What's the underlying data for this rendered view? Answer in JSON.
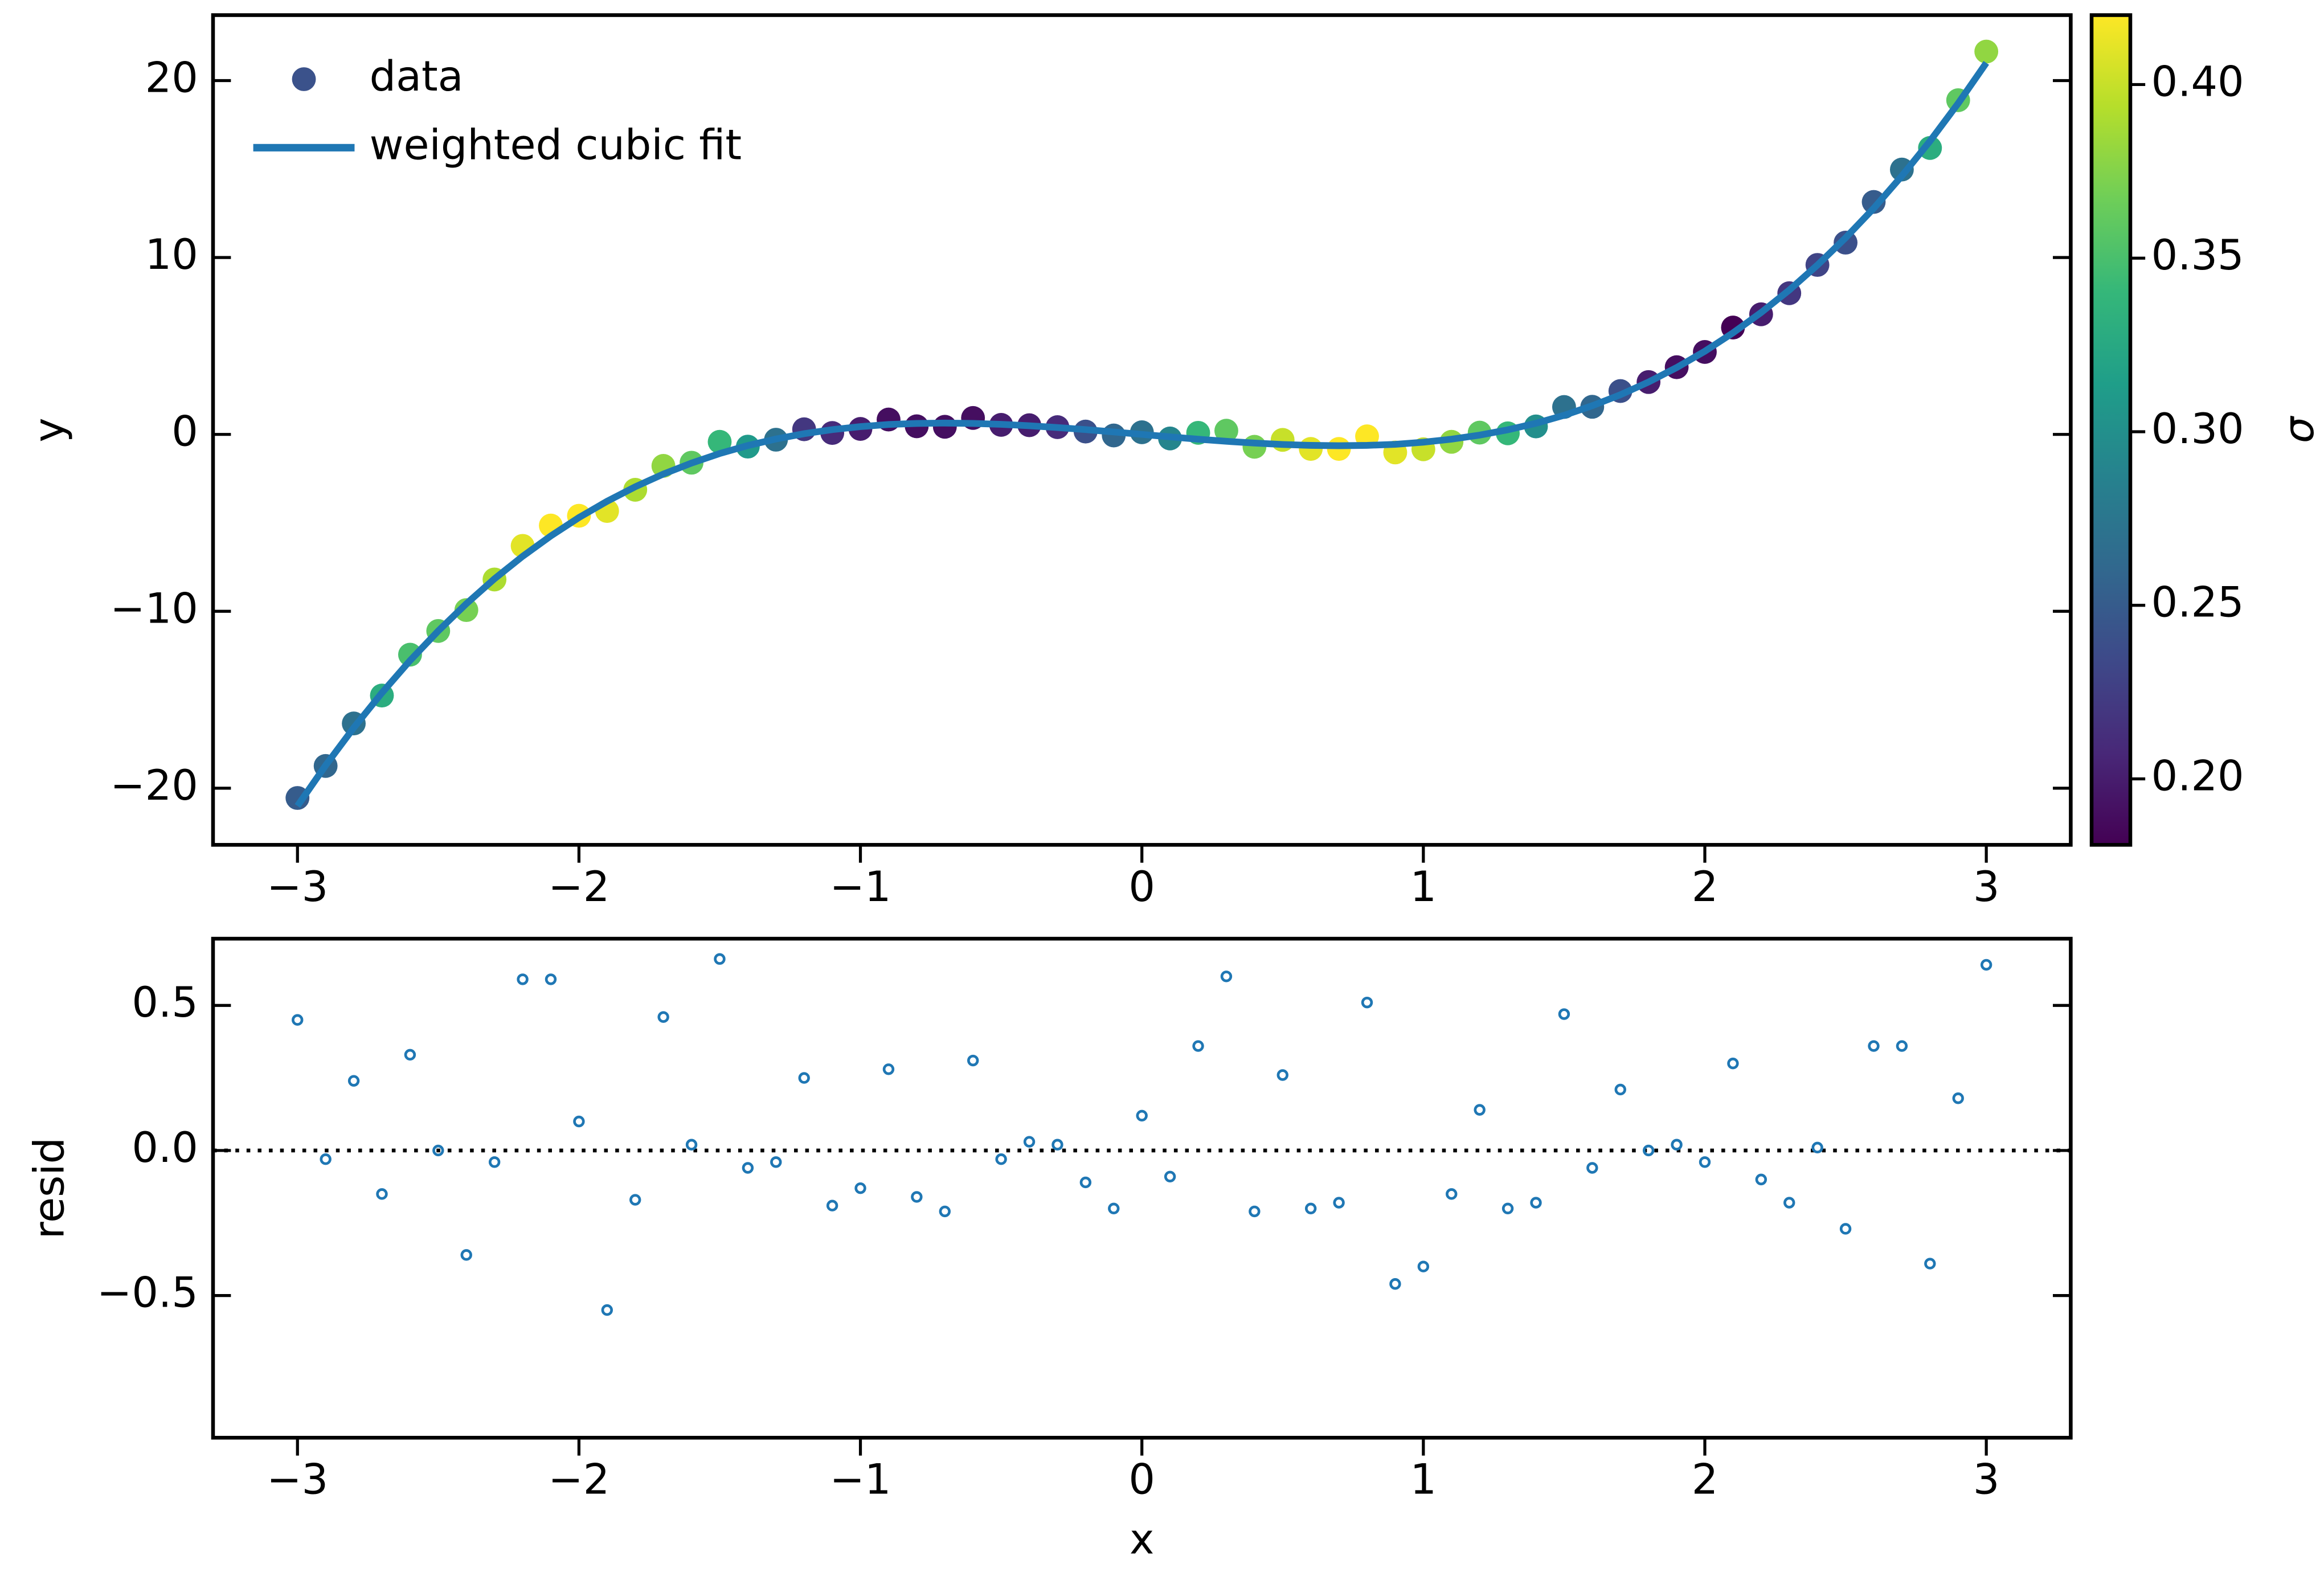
{
  "chart_data": [
    {
      "type": "scatter",
      "ylabel": "y",
      "xlim": [
        -3.3,
        3.3
      ],
      "xticks": [
        {
          "value": -3,
          "label": "−3"
        },
        {
          "value": -2,
          "label": "−2"
        },
        {
          "value": -1,
          "label": "−1"
        },
        0,
        1,
        2,
        3
      ],
      "ylim": [
        -23.2,
        23.7
      ],
      "yticks": [
        {
          "value": -20,
          "label": "−20"
        },
        {
          "value": -10,
          "label": "−10"
        },
        0,
        10,
        20
      ],
      "legend": "upper left",
      "x": [
        -3.0,
        -2.9,
        -2.8,
        -2.7,
        -2.6,
        -2.5,
        -2.4,
        -2.3,
        -2.2,
        -2.1,
        -2.0,
        -1.9,
        -1.8,
        -1.7,
        -1.6,
        -1.5,
        -1.4,
        -1.3,
        -1.2,
        -1.1,
        -1.0,
        -0.9,
        -0.8,
        -0.7,
        -0.6,
        -0.5,
        -0.4,
        -0.3,
        -0.2,
        -0.1,
        0.0,
        0.1,
        0.2,
        0.3,
        0.4,
        0.5,
        0.6,
        0.7,
        0.8,
        0.9,
        1.0,
        1.1,
        1.2,
        1.3,
        1.4,
        1.5,
        1.6,
        1.7,
        1.8,
        1.9,
        2.0,
        2.1,
        2.2,
        2.3,
        2.4,
        2.5,
        2.6,
        2.7,
        2.8,
        2.9,
        3.0
      ],
      "series": [
        {
          "name": "data",
          "type": "scatter",
          "legend_color": "#3b528b",
          "values": [
            -20.55,
            -18.74,
            -16.34,
            -14.76,
            -12.45,
            -11.11,
            -9.93,
            -8.2,
            -6.3,
            -5.15,
            -4.6,
            -4.33,
            -3.13,
            -1.78,
            -1.6,
            -0.42,
            -0.69,
            -0.3,
            0.29,
            0.08,
            0.31,
            0.84,
            0.46,
            0.43,
            0.93,
            0.54,
            0.52,
            0.41,
            0.16,
            -0.06,
            0.12,
            -0.23,
            0.09,
            0.21,
            -0.7,
            -0.31,
            -0.82,
            -0.82,
            -0.11,
            -1.02,
            -0.84,
            -0.42,
            0.1,
            0.06,
            0.45,
            1.55,
            1.56,
            2.45,
            2.96,
            3.8,
            4.66,
            6.04,
            6.79,
            7.98,
            9.58,
            10.84,
            13.14,
            14.97,
            16.19,
            18.89,
            21.64
          ],
          "sigma": [
            0.25,
            0.26,
            0.27,
            0.33,
            0.35,
            0.36,
            0.37,
            0.39,
            0.41,
            0.42,
            0.42,
            0.41,
            0.39,
            0.38,
            0.36,
            0.34,
            0.31,
            0.27,
            0.22,
            0.21,
            0.2,
            0.19,
            0.19,
            0.19,
            0.19,
            0.2,
            0.2,
            0.21,
            0.24,
            0.26,
            0.27,
            0.29,
            0.34,
            0.36,
            0.37,
            0.4,
            0.41,
            0.42,
            0.42,
            0.41,
            0.4,
            0.38,
            0.36,
            0.34,
            0.3,
            0.27,
            0.26,
            0.24,
            0.2,
            0.19,
            0.19,
            0.18,
            0.2,
            0.22,
            0.23,
            0.24,
            0.25,
            0.27,
            0.33,
            0.36,
            0.38
          ]
        },
        {
          "name": "weighted cubic fit",
          "type": "line",
          "color": "#1f77b4",
          "values": [
            -21.0,
            -18.71,
            -16.58,
            -14.61,
            -12.78,
            -11.11,
            -9.57,
            -8.16,
            -6.89,
            -5.74,
            -4.7,
            -3.78,
            -2.96,
            -2.24,
            -1.62,
            -1.08,
            -0.63,
            -0.26,
            0.04,
            0.27,
            0.44,
            0.56,
            0.62,
            0.64,
            0.62,
            0.57,
            0.49,
            0.39,
            0.27,
            0.14,
            0,
            -0.14,
            -0.27,
            -0.39,
            -0.49,
            -0.57,
            -0.62,
            -0.64,
            -0.62,
            -0.56,
            -0.44,
            -0.27,
            -0.04,
            0.26,
            0.63,
            1.08,
            1.62,
            2.24,
            2.96,
            3.78,
            4.7,
            5.74,
            6.89,
            8.16,
            9.57,
            11.11,
            12.78,
            14.61,
            16.58,
            18.71,
            21.0
          ]
        }
      ],
      "colorbar": {
        "label": "σ",
        "colormap": "viridis",
        "lim": [
          0.181,
          0.42
        ],
        "ticks": [
          {
            "value": 0.2,
            "label": "0.20"
          },
          0.25,
          {
            "value": 0.3,
            "label": "0.30"
          },
          0.35,
          {
            "value": 0.4,
            "label": "0.40"
          }
        ]
      }
    },
    {
      "type": "scatter",
      "ylabel": "resid",
      "xlabel": "x",
      "xlim": [
        -3.3,
        3.3
      ],
      "xticks": [
        {
          "value": -3,
          "label": "−3"
        },
        {
          "value": -2,
          "label": "−2"
        },
        {
          "value": -1,
          "label": "−1"
        },
        0,
        1,
        2,
        3
      ],
      "ylim": [
        -0.99,
        0.73
      ],
      "yticks": [
        {
          "value": -0.5,
          "label": "−0.5"
        },
        {
          "value": 0,
          "label": "0.0"
        },
        0.5
      ],
      "hline": 0,
      "x": [
        -3.0,
        -2.9,
        -2.8,
        -2.7,
        -2.6,
        -2.5,
        -2.4,
        -2.3,
        -2.2,
        -2.1,
        -2.0,
        -1.9,
        -1.8,
        -1.7,
        -1.6,
        -1.5,
        -1.4,
        -1.3,
        -1.2,
        -1.1,
        -1.0,
        -0.9,
        -0.8,
        -0.7,
        -0.6,
        -0.5,
        -0.4,
        -0.3,
        -0.2,
        -0.1,
        0.0,
        0.1,
        0.2,
        0.3,
        0.4,
        0.5,
        0.6,
        0.7,
        0.8,
        0.9,
        1.0,
        1.1,
        1.2,
        1.3,
        1.4,
        1.5,
        1.6,
        1.7,
        1.8,
        1.9,
        2.0,
        2.1,
        2.2,
        2.3,
        2.4,
        2.5,
        2.6,
        2.7,
        2.8,
        2.9,
        3.0
      ],
      "series": [
        {
          "type": "scatter",
          "color": "#1f77b4",
          "marker": "open",
          "values": [
            0.45,
            -0.03,
            0.24,
            -0.15,
            0.33,
            0.0,
            -0.36,
            -0.04,
            0.59,
            0.59,
            0.1,
            -0.55,
            -0.17,
            0.46,
            0.02,
            0.66,
            -0.06,
            -0.04,
            0.25,
            -0.19,
            -0.13,
            0.28,
            -0.16,
            -0.21,
            0.31,
            -0.03,
            0.03,
            0.02,
            -0.11,
            -0.2,
            0.12,
            -0.09,
            0.36,
            0.6,
            -0.21,
            0.26,
            -0.2,
            -0.18,
            0.51,
            -0.46,
            -0.4,
            -0.15,
            0.14,
            -0.2,
            -0.18,
            0.47,
            -0.06,
            0.21,
            0.0,
            0.02,
            -0.04,
            0.3,
            -0.1,
            -0.18,
            0.01,
            -0.27,
            0.36,
            0.36,
            -0.39,
            0.18,
            0.64
          ]
        }
      ]
    }
  ]
}
